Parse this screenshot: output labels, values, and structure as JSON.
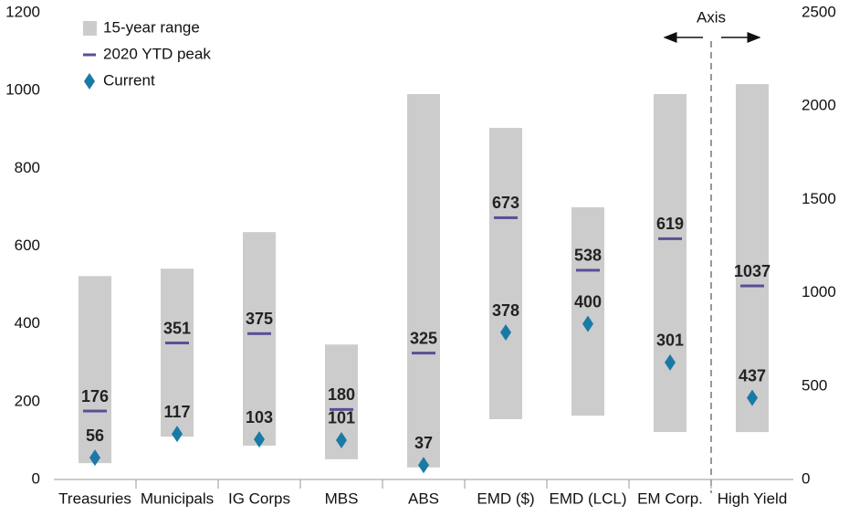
{
  "chart_data": {
    "type": "range",
    "categories": [
      "Treasuries",
      "Municipals",
      "IG Corps",
      "MBS",
      "ABS",
      "EMD ($)",
      "EMD (LCL)",
      "EM Corp.",
      "High Yield"
    ],
    "category_axis": [
      "y",
      "y",
      "y",
      "y",
      "y",
      "y",
      "y",
      "y",
      "y2"
    ],
    "series": [
      {
        "name": "15-year range",
        "color": "#cccccc",
        "low": [
          42,
          110,
          87,
          52,
          31,
          155,
          164,
          122,
          254
        ],
        "high": [
          523,
          542,
          636,
          347,
          991,
          904,
          700,
          991,
          2118
        ]
      },
      {
        "name": "2020 YTD peak",
        "color": "#5b4e96",
        "values": [
          176,
          351,
          375,
          180,
          325,
          673,
          538,
          619,
          1037
        ]
      },
      {
        "name": "Current",
        "color": "#1a7aa6",
        "values": [
          56,
          117,
          103,
          101,
          37,
          378,
          400,
          301,
          437
        ]
      }
    ],
    "annotation": "Axis",
    "ylim": [
      0,
      1200
    ],
    "yticks": [
      0,
      200,
      400,
      600,
      800,
      1000,
      1200
    ],
    "y2lim": [
      0,
      2500
    ],
    "y2ticks": [
      0,
      500,
      1000,
      1500,
      2000,
      2500
    ]
  }
}
